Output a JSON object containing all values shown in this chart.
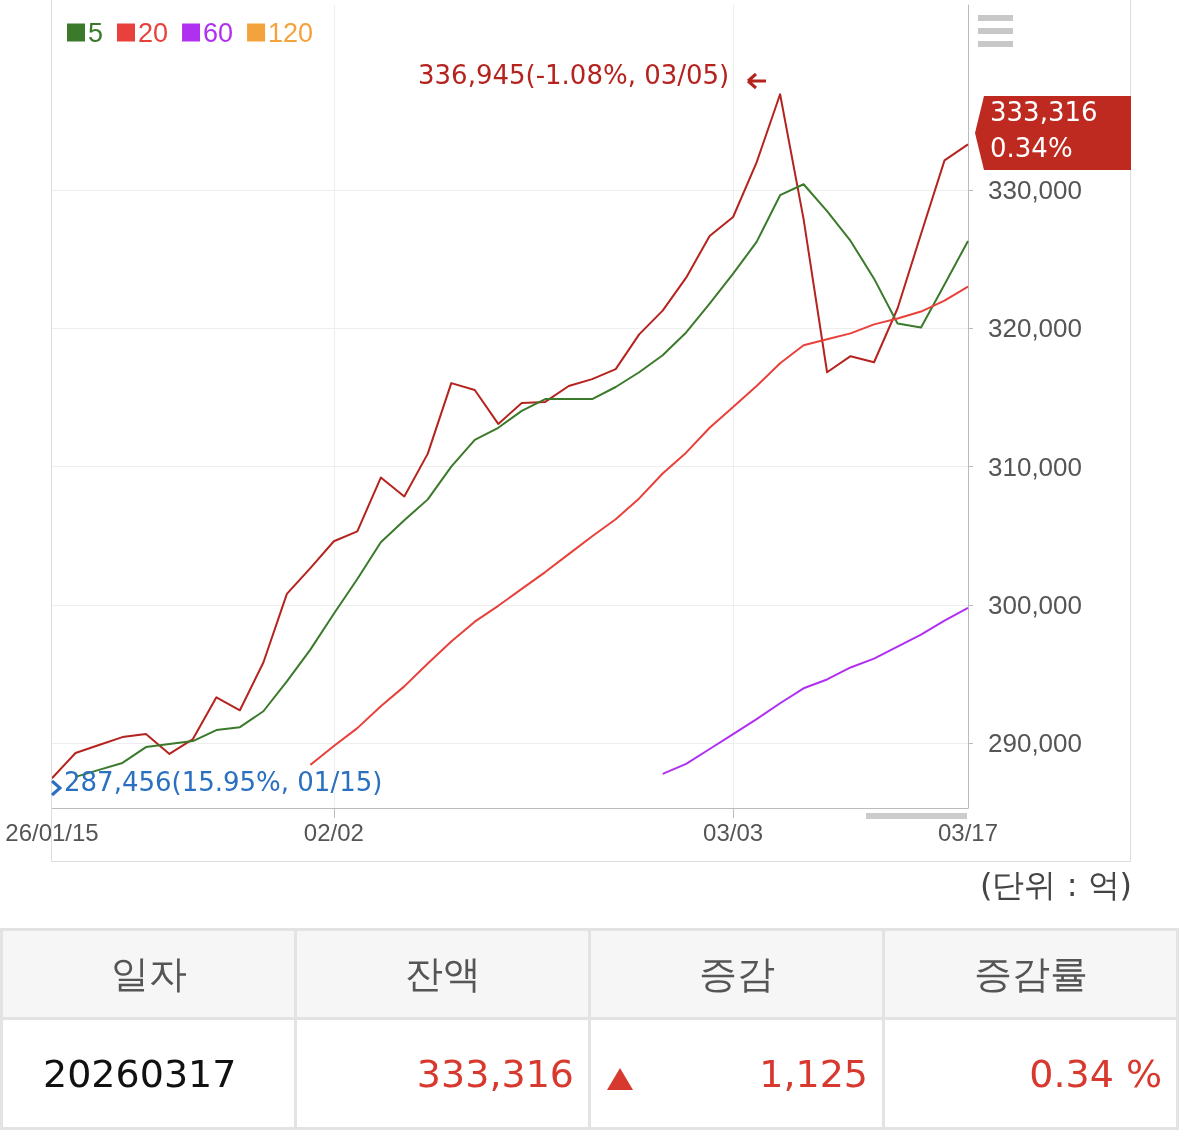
{
  "chart_data": [
    {
      "type": "line",
      "categories": [
        "26/01/15",
        null,
        null,
        null,
        null,
        null,
        null,
        null,
        null,
        null,
        null,
        null,
        "02/02",
        null,
        null,
        null,
        null,
        null,
        null,
        null,
        null,
        null,
        null,
        null,
        null,
        null,
        null,
        null,
        null,
        "03/03",
        null,
        null,
        null,
        null,
        null,
        null,
        null,
        null,
        null,
        "03/17"
      ],
      "series": [
        {
          "color": "#b5231e",
          "values": [
            287456,
            289280,
            289860,
            290430,
            290650,
            289210,
            290290,
            293310,
            292370,
            295830,
            300790,
            302660,
            304600,
            305320,
            309210,
            307840,
            310940,
            316040,
            315540,
            313090,
            314600,
            314680,
            315830,
            316330,
            317050,
            319570,
            321290,
            323670,
            326690,
            328060,
            332010,
            336945,
            327910,
            316830,
            317990,
            317550,
            321440,
            326830,
            332160,
            333316
          ]
        },
        {
          "name": "5",
          "color": "#3a7a2a",
          "values": [
            null,
            287550,
            288060,
            288560,
            289710,
            289930,
            290140,
            290940,
            291150,
            292300,
            294460,
            296760,
            299350,
            301870,
            304530,
            306120,
            307630,
            310000,
            311940,
            312810,
            314030,
            314890,
            314890,
            314890,
            315760,
            316830,
            318060,
            319710,
            321800,
            323960,
            326260,
            329640,
            330430,
            328490,
            326330,
            323600,
            320360,
            320070,
            323170,
            326330
          ]
        },
        {
          "name": "20",
          "color": "#e8403a",
          "values": [
            null,
            null,
            null,
            null,
            null,
            null,
            null,
            null,
            null,
            null,
            null,
            288420,
            289780,
            291080,
            292660,
            294100,
            295760,
            297340,
            298780,
            299930,
            301150,
            302370,
            303670,
            304960,
            306190,
            307700,
            309500,
            311010,
            312810,
            314320,
            315830,
            317480,
            318780,
            319210,
            319640,
            320290,
            320720,
            321220,
            322010,
            323020
          ]
        },
        {
          "name": "60",
          "color": "#b030f0",
          "values": [
            null,
            null,
            null,
            null,
            null,
            null,
            null,
            null,
            null,
            null,
            null,
            null,
            null,
            null,
            null,
            null,
            null,
            null,
            null,
            null,
            null,
            null,
            null,
            null,
            null,
            null,
            287770,
            288490,
            289570,
            290650,
            291730,
            292880,
            293960,
            294600,
            295470,
            296110,
            296980,
            297840,
            298850,
            299780
          ]
        },
        {
          "name": "120",
          "color": "#f4a23c",
          "values": [
            null,
            null,
            null,
            null,
            null,
            null,
            null,
            null,
            null,
            null,
            null,
            null,
            null,
            null,
            null,
            null,
            null,
            null,
            null,
            null,
            null,
            null,
            null,
            null,
            null,
            null,
            null,
            null,
            null,
            null,
            null,
            null,
            null,
            null,
            null,
            null,
            null,
            null,
            null,
            null
          ]
        }
      ],
      "ylim": [
        285300,
        343400
      ],
      "yticks": [
        {
          "value": 290000,
          "label": "290,000"
        },
        {
          "value": 300000,
          "label": "300,000"
        },
        {
          "value": 310000,
          "label": "310,000"
        },
        {
          "value": 320000,
          "label": "320,000"
        },
        {
          "value": 330000,
          "label": "330,000"
        }
      ],
      "grid": true,
      "legend": "top left",
      "annotations": [
        "336,945(-1.08%, 03/05)",
        "287,456(15.95%, 01/15)",
        "333,316",
        "0.34%",
        "(단위 : 억)"
      ]
    },
    {
      "type": "other",
      "annotations": [
        "일자",
        "잔액",
        "증감",
        "증감률",
        "20260317",
        "333,316",
        "1,125",
        "0.34 %"
      ]
    }
  ]
}
